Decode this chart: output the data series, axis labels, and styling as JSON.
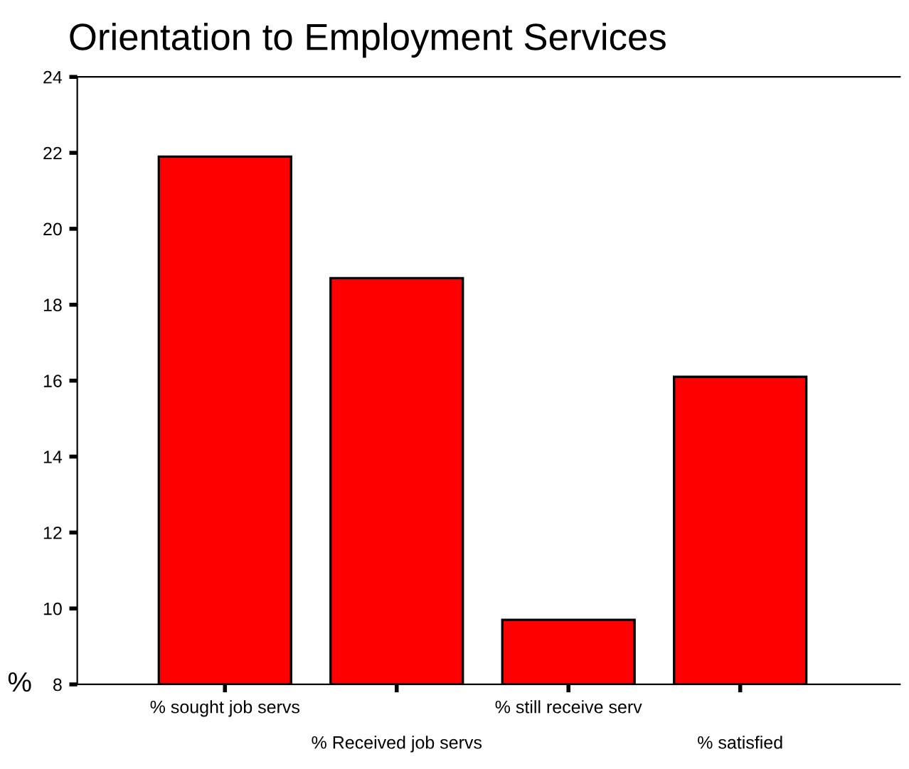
{
  "chart_data": {
    "type": "bar",
    "title": "Orientation to Employment Services",
    "ylabel": "%",
    "categories": [
      "% sought job servs",
      "% Received job servs",
      "% still receive serv",
      "% satisfied"
    ],
    "values": [
      21.9,
      18.7,
      9.7,
      16.1
    ],
    "color": "#ff0000",
    "ylim": [
      8,
      24
    ],
    "yticks": [
      8,
      10,
      12,
      14,
      16,
      18,
      20,
      22,
      24
    ],
    "grid": false,
    "legend": false
  }
}
